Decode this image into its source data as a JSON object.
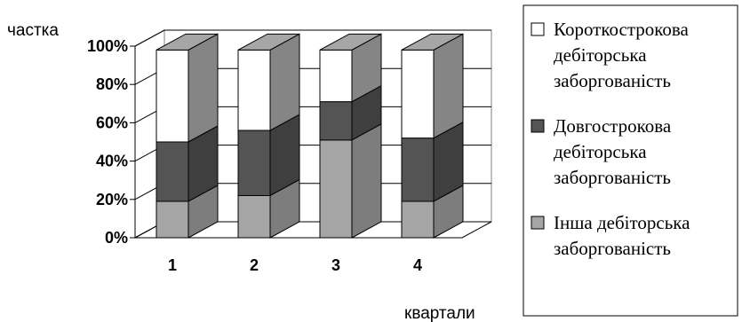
{
  "chart_data": {
    "type": "bar",
    "stacked": true,
    "three_d": true,
    "ylabel": "частка",
    "xlabel": "квартали",
    "categories": [
      "1",
      "2",
      "3",
      "4"
    ],
    "ylim": [
      0,
      100
    ],
    "yticks": [
      "0%",
      "20%",
      "40%",
      "60%",
      "80%",
      "100%"
    ],
    "grid": true,
    "legend_position": "right",
    "series": [
      {
        "name": "Інша дебіторська заборгованість",
        "values": [
          19,
          22,
          51,
          19
        ],
        "color": "#a6a6a6"
      },
      {
        "name": "Довгострокова дебіторська заборгованість",
        "values": [
          31,
          34,
          20,
          33
        ],
        "color": "#545454"
      },
      {
        "name": "Короткострокова дебіторська заборгованість",
        "values": [
          48,
          42,
          27,
          46
        ],
        "color": "#ffffff"
      }
    ],
    "legend": [
      {
        "series": 2,
        "lines": [
          "Короткострокова",
          "дебіторська",
          "заборгованість"
        ]
      },
      {
        "series": 1,
        "lines": [
          "Довгострокова",
          "дебіторська",
          "заборгованість"
        ]
      },
      {
        "series": 0,
        "lines": [
          "Інша дебіторська",
          "заборгованість"
        ]
      }
    ]
  }
}
